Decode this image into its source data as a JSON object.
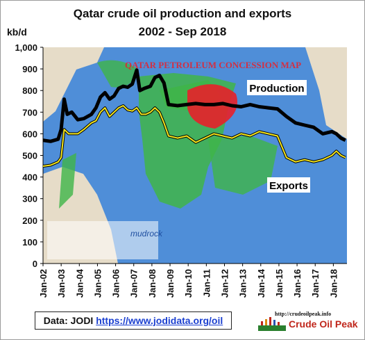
{
  "chart_data": {
    "type": "line",
    "title": "Qatar crude oil production and exports",
    "subtitle": "2002 - Sep 2018",
    "ylabel": "kb/d",
    "ylim": [
      0,
      1000
    ],
    "yticks": [
      "0",
      "100",
      "200",
      "300",
      "400",
      "500",
      "600",
      "700",
      "800",
      "900",
      "1,000"
    ],
    "xticks": [
      "Jan-02",
      "Jan-03",
      "Jan-04",
      "Jan-05",
      "Jan-06",
      "Jan-07",
      "Jan-08",
      "Jan-09",
      "Jan-10",
      "Jan-11",
      "Jan-12",
      "Jan-13",
      "Jan-14",
      "Jan-15",
      "Jan-16",
      "Jan-17",
      "Jan-18"
    ],
    "series": [
      {
        "name": "Production",
        "color": "#000000",
        "points": [
          [
            "2002-01",
            570
          ],
          [
            "2002-06",
            565
          ],
          [
            "2002-11",
            575
          ],
          [
            "2003-01",
            620
          ],
          [
            "2003-03",
            760
          ],
          [
            "2003-05",
            690
          ],
          [
            "2003-08",
            700
          ],
          [
            "2003-12",
            665
          ],
          [
            "2004-04",
            670
          ],
          [
            "2004-09",
            690
          ],
          [
            "2004-12",
            720
          ],
          [
            "2005-03",
            770
          ],
          [
            "2005-06",
            790
          ],
          [
            "2005-09",
            760
          ],
          [
            "2005-12",
            775
          ],
          [
            "2006-03",
            810
          ],
          [
            "2006-06",
            820
          ],
          [
            "2006-09",
            815
          ],
          [
            "2006-12",
            830
          ],
          [
            "2007-03",
            895
          ],
          [
            "2007-05",
            800
          ],
          [
            "2007-08",
            810
          ],
          [
            "2007-12",
            820
          ],
          [
            "2008-03",
            860
          ],
          [
            "2008-06",
            870
          ],
          [
            "2008-09",
            835
          ],
          [
            "2008-12",
            735
          ],
          [
            "2009-06",
            730
          ],
          [
            "2009-12",
            735
          ],
          [
            "2010-06",
            740
          ],
          [
            "2010-12",
            735
          ],
          [
            "2011-06",
            735
          ],
          [
            "2011-12",
            740
          ],
          [
            "2012-06",
            730
          ],
          [
            "2012-12",
            725
          ],
          [
            "2013-06",
            735
          ],
          [
            "2013-12",
            725
          ],
          [
            "2014-06",
            720
          ],
          [
            "2014-12",
            715
          ],
          [
            "2015-06",
            680
          ],
          [
            "2015-12",
            650
          ],
          [
            "2016-06",
            640
          ],
          [
            "2016-12",
            630
          ],
          [
            "2017-06",
            600
          ],
          [
            "2017-12",
            610
          ],
          [
            "2018-03",
            600
          ],
          [
            "2018-06",
            580
          ],
          [
            "2018-09",
            570
          ]
        ]
      },
      {
        "name": "Exports",
        "color": "#f5e61c",
        "points": [
          [
            "2002-01",
            450
          ],
          [
            "2002-06",
            455
          ],
          [
            "2002-11",
            470
          ],
          [
            "2003-01",
            490
          ],
          [
            "2003-03",
            620
          ],
          [
            "2003-06",
            600
          ],
          [
            "2003-12",
            600
          ],
          [
            "2004-04",
            620
          ],
          [
            "2004-09",
            650
          ],
          [
            "2004-12",
            660
          ],
          [
            "2005-03",
            700
          ],
          [
            "2005-06",
            720
          ],
          [
            "2005-09",
            680
          ],
          [
            "2005-12",
            700
          ],
          [
            "2006-03",
            720
          ],
          [
            "2006-06",
            730
          ],
          [
            "2006-09",
            710
          ],
          [
            "2006-12",
            705
          ],
          [
            "2007-03",
            720
          ],
          [
            "2007-06",
            690
          ],
          [
            "2007-09",
            690
          ],
          [
            "2007-12",
            700
          ],
          [
            "2008-03",
            720
          ],
          [
            "2008-06",
            700
          ],
          [
            "2008-09",
            650
          ],
          [
            "2008-12",
            590
          ],
          [
            "2009-06",
            580
          ],
          [
            "2009-12",
            590
          ],
          [
            "2010-06",
            560
          ],
          [
            "2010-12",
            580
          ],
          [
            "2011-06",
            600
          ],
          [
            "2011-12",
            590
          ],
          [
            "2012-06",
            580
          ],
          [
            "2012-12",
            600
          ],
          [
            "2013-06",
            590
          ],
          [
            "2013-12",
            610
          ],
          [
            "2014-06",
            600
          ],
          [
            "2014-12",
            590
          ],
          [
            "2015-06",
            490
          ],
          [
            "2015-12",
            470
          ],
          [
            "2016-06",
            480
          ],
          [
            "2016-12",
            470
          ],
          [
            "2017-06",
            480
          ],
          [
            "2017-12",
            500
          ],
          [
            "2018-03",
            520
          ],
          [
            "2018-06",
            500
          ],
          [
            "2018-09",
            490
          ]
        ]
      }
    ],
    "annotations": [
      "Production",
      "Exports"
    ]
  },
  "source": {
    "prefix": "Data: JODI",
    "link": "https://www.jodidata.org/oil"
  },
  "brand": {
    "url": "http://crudeoilpeak.info",
    "name": "Crude Oil Peak"
  },
  "background_map": {
    "heading": "QATAR PETROLEUM CONCESSION MAP",
    "logo": "mudrock"
  },
  "colors": {
    "sea": "#4f8ed8",
    "land": "#e6dcc8",
    "block": "#3fb549",
    "field": "#e8202a",
    "production": "#000000",
    "exports": "#f5e61c"
  }
}
